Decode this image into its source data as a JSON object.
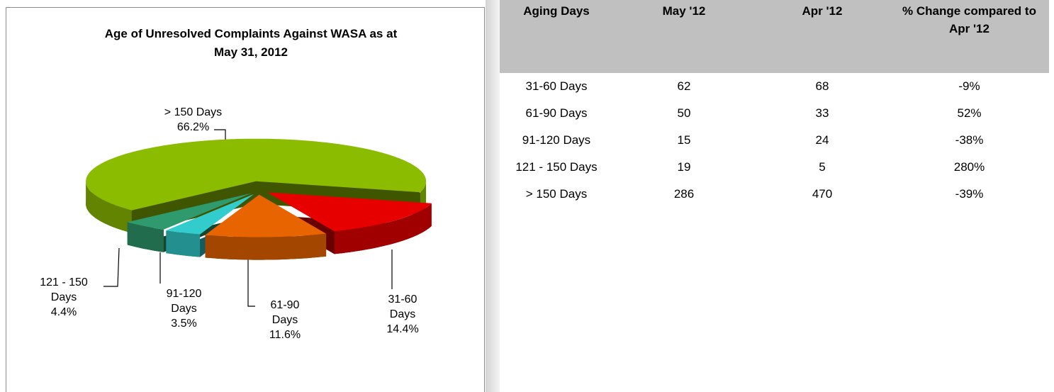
{
  "chart_data": {
    "type": "pie",
    "title": "Age of Unresolved Complaints Against WASA as at May 31, 2012",
    "categories": [
      "31-60 Days",
      "61-90 Days",
      "91-120 Days",
      "121 - 150 Days",
      "> 150 Days"
    ],
    "values": [
      14.4,
      11.6,
      3.5,
      4.4,
      66.2
    ],
    "value_labels": [
      "14.4%",
      "11.6%",
      "3.5%",
      "4.4%",
      "66.2%"
    ],
    "colors": [
      "#e60000",
      "#e86400",
      "#33cccc",
      "#2e9a6e",
      "#8cbc00"
    ]
  },
  "table": {
    "header": [
      "Aging Days",
      "May '12",
      "Apr '12",
      "% Change compared to Apr '12"
    ],
    "rows": [
      [
        "31-60 Days",
        62,
        68,
        "-9%"
      ],
      [
        "61-90 Days",
        50,
        33,
        "52%"
      ],
      [
        "91-120 Days",
        15,
        24,
        "-38%"
      ],
      [
        "121 - 150 Days",
        19,
        5,
        "280%"
      ],
      [
        "> 150 Days",
        286,
        470,
        "-39%"
      ]
    ]
  }
}
